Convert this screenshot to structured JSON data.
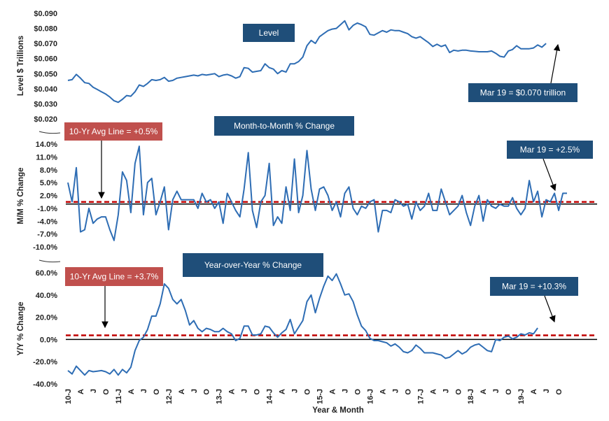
{
  "chart_data": [
    {
      "type": "line",
      "title": "Level",
      "ylabel": "Level $ Trillions",
      "ylim": [
        0.02,
        0.09
      ],
      "yticks": [
        "$0.090",
        "$0.080",
        "$0.070",
        "$0.060",
        "$0.050",
        "$0.040",
        "$0.030",
        "$0.020"
      ],
      "annotation": "Mar 19 = $0.070 trillion",
      "series": [
        {
          "values": [
            0.0455,
            0.046,
            0.0495,
            0.047,
            0.044,
            0.0435,
            0.041,
            0.0395,
            0.038,
            0.0365,
            0.0345,
            0.032,
            0.031,
            0.033,
            0.0355,
            0.035,
            0.038,
            0.0425,
            0.0415,
            0.0435,
            0.046,
            0.0455,
            0.046,
            0.0475,
            0.045,
            0.0455,
            0.047,
            0.0475,
            0.048,
            0.0485,
            0.049,
            0.0485,
            0.0495,
            0.049,
            0.0495,
            0.05,
            0.048,
            0.049,
            0.0495,
            0.0485,
            0.047,
            0.048,
            0.054,
            0.0535,
            0.051,
            0.0515,
            0.052,
            0.0565,
            0.054,
            0.053,
            0.05,
            0.052,
            0.051,
            0.0565,
            0.0565,
            0.058,
            0.061,
            0.0685,
            0.072,
            0.07,
            0.0745,
            0.0765,
            0.0785,
            0.0795,
            0.08,
            0.0825,
            0.085,
            0.079,
            0.082,
            0.0835,
            0.0825,
            0.081,
            0.076,
            0.0755,
            0.077,
            0.0785,
            0.0775,
            0.079,
            0.0785,
            0.0785,
            0.0775,
            0.0765,
            0.0745,
            0.0735,
            0.0745,
            0.0725,
            0.0705,
            0.068,
            0.0695,
            0.068,
            0.069,
            0.064,
            0.0655,
            0.065,
            0.0655,
            0.0655,
            0.065,
            0.0648,
            0.0645,
            0.0645,
            0.0645,
            0.065,
            0.0635,
            0.0615,
            0.061,
            0.065,
            0.066,
            0.0685,
            0.0665,
            0.0665,
            0.0665,
            0.067,
            0.069,
            0.0675,
            0.07
          ]
        }
      ]
    },
    {
      "type": "line",
      "title": "Month-to-Month % Change",
      "ylabel": "M/M % Change",
      "ylim": [
        -10,
        14
      ],
      "yticks": [
        "14.0%",
        "11.0%",
        "8.0%",
        "5.0%",
        "2.0%",
        "-1.0%",
        "-4.0%",
        "-7.0%",
        "-10.0%"
      ],
      "avg_line_label": "10-Yr Avg Line = +0.5%",
      "avg_value": 0.5,
      "annotation": "Mar 19 = +2.5%",
      "series": [
        {
          "values": [
            5,
            0.5,
            8.5,
            -6.5,
            -6,
            -1,
            -4.5,
            -3.5,
            -3,
            -3,
            -6,
            -8.5,
            -2.5,
            7.5,
            5.5,
            -2,
            9.5,
            13.5,
            -2.5,
            5,
            6,
            -2.5,
            0.5,
            4,
            -6,
            1,
            3,
            1,
            1,
            1,
            1,
            -1,
            2.5,
            0.5,
            1,
            -1,
            0.5,
            -4.5,
            2.5,
            0.5,
            -1.5,
            -3,
            3.5,
            12,
            -1.5,
            -5.5,
            0.5,
            2,
            9.5,
            -5,
            -3,
            -4.5,
            4,
            -1.5,
            10.5,
            -2,
            2,
            12.5,
            3.5,
            -1.5,
            3.5,
            4,
            2,
            -1.5,
            0.5,
            -3,
            2.5,
            4,
            -1,
            -2.5,
            -0.5,
            -1,
            0.5,
            1,
            -6.5,
            -1.5,
            -1.5,
            -2,
            1,
            0.5,
            -0.5,
            0,
            -3.5,
            0.5,
            -1.5,
            -0.5,
            2.5,
            -1.5,
            -1.5,
            3.5,
            0.5,
            -2.5,
            -1.5,
            -0.5,
            2,
            -2,
            -5,
            -0.5,
            2,
            -4,
            1,
            -0.5,
            -1,
            0,
            -0.5,
            -0.5,
            1.5,
            -1,
            -2.5,
            -1,
            5.5,
            0.5,
            3,
            -3,
            1,
            0.5,
            2.5,
            -1.5,
            2.5,
            2.5
          ]
        }
      ]
    },
    {
      "type": "line",
      "title": "Year-over-Year % Change",
      "ylabel": "Y/Y % Change",
      "xlabel": "Year & Month",
      "ylim": [
        -40,
        60
      ],
      "yticks": [
        "60.0%",
        "40.0%",
        "20.0%",
        "0.0%",
        "-20.0%",
        "-40.0%"
      ],
      "avg_line_label": "10-Yr Avg Line = +3.7%",
      "avg_value": 3.7,
      "annotation": "Mar 19 = +10.3%",
      "series": [
        {
          "values": [
            -28,
            -31,
            -24,
            -28,
            -32,
            -28,
            -29,
            -28.5,
            -28,
            -29,
            -31,
            -27,
            -32,
            -27,
            -30,
            -25,
            -10,
            -1,
            2,
            9,
            21,
            21,
            32,
            50,
            46,
            36,
            32,
            36,
            26,
            13,
            17,
            10,
            7,
            10,
            9,
            7,
            7,
            10,
            7,
            5,
            -1,
            1,
            12,
            12,
            4,
            4,
            5,
            12,
            11,
            6,
            2,
            6,
            9,
            18,
            5,
            11,
            17,
            34,
            40,
            24,
            37,
            48,
            57,
            53,
            59,
            50,
            40,
            41,
            34,
            22,
            12,
            8,
            1,
            -1,
            -1,
            -2,
            -3,
            -6,
            -4,
            -7,
            -11,
            -12,
            -10,
            -5,
            -8,
            -12,
            -12,
            -12,
            -13,
            -14,
            -17,
            -16,
            -13,
            -10,
            -13,
            -11,
            -7,
            -5,
            -4,
            -7,
            -10,
            -11,
            0,
            -1,
            2,
            3,
            0.5,
            2,
            5,
            4,
            6,
            5,
            10.3
          ]
        }
      ]
    }
  ],
  "x_axis": {
    "title": "Year & Month",
    "labels": [
      "10-J",
      "A",
      "J",
      "O",
      "11-J",
      "A",
      "J",
      "O",
      "12-J",
      "A",
      "J",
      "O",
      "13-J",
      "A",
      "J",
      "O",
      "14-J",
      "A",
      "J",
      "O",
      "15-J",
      "A",
      "J",
      "O",
      "16-J",
      "A",
      "J",
      "O",
      "17-J",
      "A",
      "J",
      "O",
      "18-J",
      "A",
      "J",
      "O",
      "19-J",
      "A",
      "J",
      "O"
    ]
  },
  "colors": {
    "line": "#2e6db4",
    "avg_line": "#c00000",
    "title_box": "#1f4e79",
    "avg_box": "#c0504d",
    "zero_line": "#000000"
  }
}
